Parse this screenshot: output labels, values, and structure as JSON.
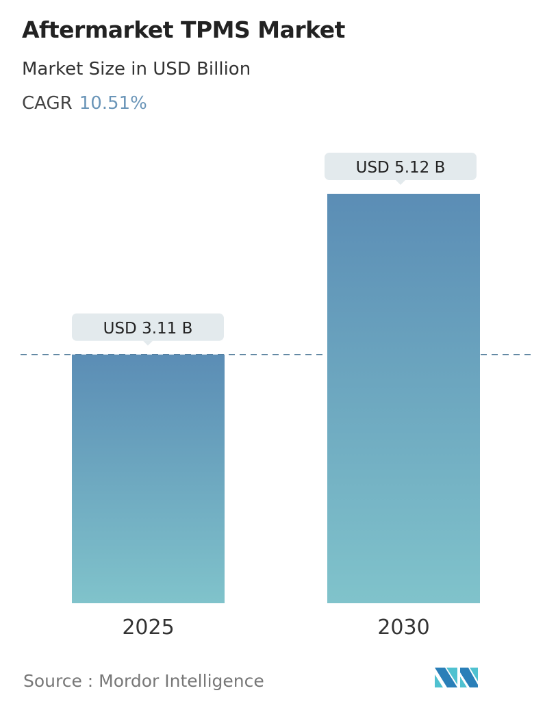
{
  "title": "Aftermarket TPMS Market",
  "subtitle": "Market Size in USD Billion",
  "cagr_label": "CAGR",
  "cagr_value": "10.51%",
  "source": "Source :  Mordor Intelligence",
  "logo_text": "Mordor Intelligence",
  "colors": {
    "bar_top": "#5b8db5",
    "bar_bottom": "#80c3cb",
    "label_bg": "#e3eaed",
    "dash": "#4f7a98"
  },
  "chart_data": {
    "type": "bar",
    "categories": [
      "2025",
      "2030"
    ],
    "values": [
      3.11,
      5.12
    ],
    "data_labels": [
      "USD 3.11 B",
      "USD 5.12 B"
    ],
    "ylabel": "Market Size in USD Billion",
    "reference_line": 3.11,
    "grid": false
  }
}
